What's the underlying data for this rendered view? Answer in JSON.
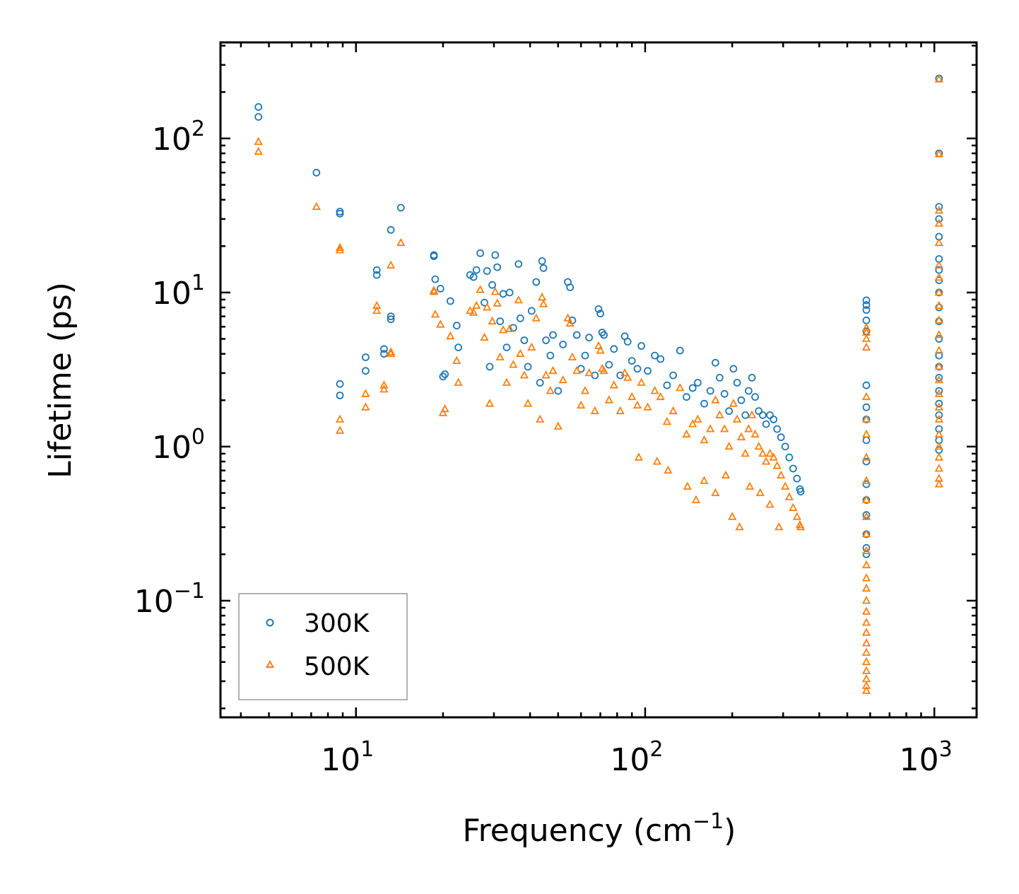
{
  "chart_data": {
    "type": "scatter",
    "title": "",
    "xlabel": "Frequency (cm",
    "xlabel_sup": "−1",
    "xlabel_tail": ")",
    "ylabel": "Lifetime (ps)",
    "xscale": "log",
    "yscale": "log",
    "xlim": [
      3.4,
      1400
    ],
    "ylim": [
      0.0175,
      420
    ],
    "x_ticks": [
      {
        "value": 10,
        "base": "10",
        "exp": "1"
      },
      {
        "value": 100,
        "base": "10",
        "exp": "2"
      },
      {
        "value": 1000,
        "base": "10",
        "exp": "3"
      }
    ],
    "y_ticks": [
      {
        "value": 0.1,
        "base": "10",
        "exp": "−1"
      },
      {
        "value": 1,
        "base": "10",
        "exp": "0"
      },
      {
        "value": 10,
        "base": "10",
        "exp": "1"
      },
      {
        "value": 100,
        "base": "10",
        "exp": "2"
      }
    ],
    "legend_position": "bottom-left",
    "series": [
      {
        "name": "300K",
        "marker": "circle",
        "color": "#1f77b4",
        "points": [
          [
            4.6,
            160
          ],
          [
            4.6,
            138
          ],
          [
            7.3,
            60
          ],
          [
            8.8,
            33.5
          ],
          [
            8.8,
            32.5
          ],
          [
            8.8,
            2.55
          ],
          [
            8.8,
            2.15
          ],
          [
            10.8,
            3.8
          ],
          [
            10.8,
            3.1
          ],
          [
            11.8,
            14
          ],
          [
            11.8,
            13
          ],
          [
            12.5,
            4.3
          ],
          [
            12.5,
            4.0
          ],
          [
            13.2,
            25.5
          ],
          [
            13.2,
            7.0
          ],
          [
            13.2,
            6.7
          ],
          [
            14.3,
            35.5
          ],
          [
            18.6,
            17.5
          ],
          [
            18.6,
            17.2
          ],
          [
            18.8,
            12.2
          ],
          [
            19.6,
            10.6
          ],
          [
            20,
            2.85
          ],
          [
            20.3,
            2.95
          ],
          [
            21.2,
            8.8
          ],
          [
            22.3,
            6.1
          ],
          [
            22.6,
            4.4
          ],
          [
            24.8,
            13
          ],
          [
            25.5,
            12.6
          ],
          [
            26.1,
            14
          ],
          [
            26.9,
            18
          ],
          [
            27.8,
            8.6
          ],
          [
            28.4,
            13.8
          ],
          [
            29,
            3.3
          ],
          [
            29.6,
            11.2
          ],
          [
            30.3,
            17.5
          ],
          [
            30.8,
            14.6
          ],
          [
            31.5,
            6.5
          ],
          [
            32.3,
            9.8
          ],
          [
            33.2,
            4.4
          ],
          [
            34,
            10
          ],
          [
            35,
            5.9
          ],
          [
            36.5,
            15.3
          ],
          [
            37,
            6.8
          ],
          [
            38.2,
            4.9
          ],
          [
            39.3,
            3.3
          ],
          [
            40.5,
            7.6
          ],
          [
            42,
            11.7
          ],
          [
            43.3,
            2.6
          ],
          [
            44,
            16
          ],
          [
            44.5,
            14.4
          ],
          [
            45.4,
            4.9
          ],
          [
            47,
            3.9
          ],
          [
            48,
            5.3
          ],
          [
            50,
            2.3
          ],
          [
            52,
            4.6
          ],
          [
            54,
            11.7
          ],
          [
            55,
            10.8
          ],
          [
            56,
            6.6
          ],
          [
            58,
            5.3
          ],
          [
            60,
            3.2
          ],
          [
            62,
            3.9
          ],
          [
            64,
            5.1
          ],
          [
            67,
            2.9
          ],
          [
            69,
            7.8
          ],
          [
            70,
            7.3
          ],
          [
            71,
            5.5
          ],
          [
            72,
            5.3
          ],
          [
            75,
            3.4
          ],
          [
            78,
            4.3
          ],
          [
            82,
            2.9
          ],
          [
            85,
            5.2
          ],
          [
            87,
            4.8
          ],
          [
            90,
            3.6
          ],
          [
            94,
            3.2
          ],
          [
            97,
            4.5
          ],
          [
            102,
            3.1
          ],
          [
            108,
            3.9
          ],
          [
            113,
            3.7
          ],
          [
            119,
            2.5
          ],
          [
            125,
            2.9
          ],
          [
            132,
            4.2
          ],
          [
            139,
            2.1
          ],
          [
            146,
            2.4
          ],
          [
            152,
            2.6
          ],
          [
            160,
            1.9
          ],
          [
            168,
            2.3
          ],
          [
            175,
            3.5
          ],
          [
            181,
            2.8
          ],
          [
            188,
            2.2
          ],
          [
            195,
            1.7
          ],
          [
            202,
            3.2
          ],
          [
            208,
            2.6
          ],
          [
            215,
            2.0
          ],
          [
            222,
            1.6
          ],
          [
            228,
            2.3
          ],
          [
            234,
            2.8
          ],
          [
            240,
            2.1
          ],
          [
            247,
            1.7
          ],
          [
            255,
            1.6
          ],
          [
            262,
            1.4
          ],
          [
            270,
            1.6
          ],
          [
            278,
            1.5
          ],
          [
            286,
            1.3
          ],
          [
            295,
            1.15
          ],
          [
            305,
            1.0
          ],
          [
            315,
            0.85
          ],
          [
            325,
            0.72
          ],
          [
            335,
            0.62
          ],
          [
            343,
            0.53
          ],
          [
            345,
            0.51
          ],
          [
            582,
            8.9
          ],
          [
            582,
            8.3
          ],
          [
            582,
            7.7
          ],
          [
            582,
            6.6
          ],
          [
            582,
            5.6
          ],
          [
            582,
            2.5
          ],
          [
            582,
            1.8
          ],
          [
            582,
            1.5
          ],
          [
            582,
            1.1
          ],
          [
            582,
            0.8
          ],
          [
            582,
            0.57
          ],
          [
            582,
            0.45
          ],
          [
            582,
            0.36
          ],
          [
            582,
            0.27
          ],
          [
            582,
            0.22
          ],
          [
            582,
            0.2
          ],
          [
            1038,
            245
          ],
          [
            1038,
            80
          ],
          [
            1038,
            36
          ],
          [
            1038,
            30
          ],
          [
            1038,
            23
          ],
          [
            1038,
            16.5
          ],
          [
            1038,
            14
          ],
          [
            1038,
            12
          ],
          [
            1038,
            10
          ],
          [
            1038,
            8
          ],
          [
            1038,
            6.5
          ],
          [
            1038,
            5
          ],
          [
            1038,
            3.9
          ],
          [
            1038,
            3.3
          ],
          [
            1038,
            2.8
          ],
          [
            1038,
            2.3
          ],
          [
            1038,
            1.9
          ],
          [
            1038,
            1.6
          ],
          [
            1038,
            1.3
          ],
          [
            1038,
            1.1
          ],
          [
            1038,
            0.95
          ]
        ]
      },
      {
        "name": "500K",
        "marker": "triangle",
        "color": "#ff7f0e",
        "points": [
          [
            4.6,
            95
          ],
          [
            4.6,
            82
          ],
          [
            7.3,
            36
          ],
          [
            8.8,
            19.5
          ],
          [
            8.8,
            18.8
          ],
          [
            8.8,
            1.5
          ],
          [
            8.8,
            1.27
          ],
          [
            10.8,
            2.2
          ],
          [
            10.8,
            1.8
          ],
          [
            11.8,
            8.2
          ],
          [
            11.8,
            7.6
          ],
          [
            12.5,
            2.5
          ],
          [
            12.5,
            2.35
          ],
          [
            13.2,
            15
          ],
          [
            13.2,
            4.1
          ],
          [
            13.2,
            4.0
          ],
          [
            14.3,
            21
          ],
          [
            18.6,
            10.3
          ],
          [
            18.6,
            10.1
          ],
          [
            18.8,
            7.2
          ],
          [
            19.6,
            6.2
          ],
          [
            20,
            1.65
          ],
          [
            20.3,
            1.75
          ],
          [
            21.2,
            5.2
          ],
          [
            22.3,
            3.6
          ],
          [
            22.6,
            2.6
          ],
          [
            24.8,
            7.6
          ],
          [
            25.5,
            7.4
          ],
          [
            26.1,
            8.2
          ],
          [
            26.9,
            10.4
          ],
          [
            27.8,
            5.1
          ],
          [
            28.4,
            8.0
          ],
          [
            29,
            1.9
          ],
          [
            29.6,
            6.5
          ],
          [
            30.3,
            10.1
          ],
          [
            30.8,
            8.5
          ],
          [
            31.5,
            3.8
          ],
          [
            32.3,
            5.7
          ],
          [
            33.2,
            2.6
          ],
          [
            34,
            5.8
          ],
          [
            35,
            3.4
          ],
          [
            36.5,
            8.9
          ],
          [
            37,
            4.0
          ],
          [
            38.2,
            2.9
          ],
          [
            39.3,
            1.9
          ],
          [
            40.5,
            4.4
          ],
          [
            42,
            6.8
          ],
          [
            43.3,
            1.5
          ],
          [
            44,
            9.3
          ],
          [
            44.5,
            8.4
          ],
          [
            45.4,
            2.9
          ],
          [
            47,
            2.3
          ],
          [
            48,
            3.1
          ],
          [
            50,
            1.35
          ],
          [
            52,
            2.7
          ],
          [
            54,
            6.8
          ],
          [
            55,
            6.3
          ],
          [
            56,
            3.8
          ],
          [
            58,
            3.1
          ],
          [
            60,
            1.85
          ],
          [
            62,
            2.3
          ],
          [
            64,
            3.0
          ],
          [
            67,
            1.7
          ],
          [
            69,
            4.5
          ],
          [
            70,
            4.2
          ],
          [
            71,
            3.2
          ],
          [
            72,
            3.1
          ],
          [
            75,
            2.0
          ],
          [
            78,
            2.5
          ],
          [
            82,
            1.7
          ],
          [
            85,
            3.0
          ],
          [
            87,
            2.8
          ],
          [
            90,
            2.1
          ],
          [
            94,
            1.85
          ],
          [
            97,
            2.6
          ],
          [
            102,
            1.8
          ],
          [
            108,
            2.3
          ],
          [
            113,
            2.1
          ],
          [
            119,
            1.45
          ],
          [
            125,
            1.7
          ],
          [
            132,
            2.4
          ],
          [
            139,
            1.2
          ],
          [
            146,
            1.4
          ],
          [
            152,
            1.5
          ],
          [
            160,
            1.1
          ],
          [
            168,
            1.3
          ],
          [
            175,
            2.0
          ],
          [
            181,
            1.6
          ],
          [
            188,
            1.3
          ],
          [
            195,
            1.0
          ],
          [
            202,
            1.9
          ],
          [
            208,
            1.5
          ],
          [
            215,
            1.15
          ],
          [
            222,
            0.9
          ],
          [
            228,
            1.3
          ],
          [
            234,
            1.6
          ],
          [
            240,
            1.2
          ],
          [
            247,
            1.0
          ],
          [
            255,
            0.9
          ],
          [
            262,
            0.8
          ],
          [
            270,
            0.9
          ],
          [
            278,
            0.85
          ],
          [
            286,
            0.75
          ],
          [
            295,
            0.65
          ],
          [
            305,
            0.55
          ],
          [
            315,
            0.47
          ],
          [
            325,
            0.4
          ],
          [
            335,
            0.35
          ],
          [
            343,
            0.31
          ],
          [
            345,
            0.3
          ],
          [
            95,
            0.85
          ],
          [
            110,
            0.8
          ],
          [
            120,
            0.7
          ],
          [
            140,
            0.55
          ],
          [
            150,
            0.45
          ],
          [
            160,
            0.6
          ],
          [
            175,
            0.5
          ],
          [
            190,
            0.65
          ],
          [
            200,
            0.35
          ],
          [
            212,
            0.3
          ],
          [
            230,
            0.55
          ],
          [
            250,
            0.5
          ],
          [
            270,
            0.42
          ],
          [
            290,
            0.3
          ],
          [
            582,
            5.9
          ],
          [
            582,
            5.5
          ],
          [
            582,
            5.0
          ],
          [
            582,
            4.4
          ],
          [
            582,
            2.1
          ],
          [
            582,
            1.5
          ],
          [
            582,
            1.2
          ],
          [
            582,
            0.85
          ],
          [
            582,
            0.6
          ],
          [
            582,
            0.45
          ],
          [
            582,
            0.35
          ],
          [
            582,
            0.27
          ],
          [
            582,
            0.21
          ],
          [
            582,
            0.17
          ],
          [
            582,
            0.14
          ],
          [
            582,
            0.12
          ],
          [
            582,
            0.1
          ],
          [
            582,
            0.085
          ],
          [
            582,
            0.072
          ],
          [
            582,
            0.062
          ],
          [
            582,
            0.053
          ],
          [
            582,
            0.046
          ],
          [
            582,
            0.04
          ],
          [
            582,
            0.035
          ],
          [
            582,
            0.031
          ],
          [
            582,
            0.028
          ],
          [
            582,
            0.026
          ],
          [
            1038,
            242
          ],
          [
            1038,
            79
          ],
          [
            1038,
            34
          ],
          [
            1038,
            28
          ],
          [
            1038,
            21
          ],
          [
            1038,
            15
          ],
          [
            1038,
            12.5
          ],
          [
            1038,
            10
          ],
          [
            1038,
            8.2
          ],
          [
            1038,
            6.6
          ],
          [
            1038,
            5.3
          ],
          [
            1038,
            4.2
          ],
          [
            1038,
            3.3
          ],
          [
            1038,
            2.7
          ],
          [
            1038,
            2.2
          ],
          [
            1038,
            1.8
          ],
          [
            1038,
            1.5
          ],
          [
            1038,
            1.2
          ],
          [
            1038,
            1.0
          ],
          [
            1038,
            0.85
          ],
          [
            1038,
            0.72
          ],
          [
            1038,
            0.62
          ],
          [
            1038,
            0.57
          ]
        ]
      }
    ]
  }
}
